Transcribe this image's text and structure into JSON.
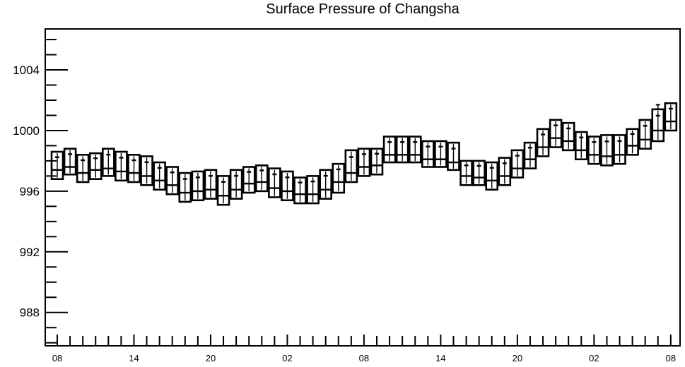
{
  "chart_data": {
    "type": "box",
    "title": "Surface Pressure of Changsha",
    "xlabel": "",
    "ylabel": "",
    "ylim": [
      985.8,
      1006.7
    ],
    "yticks": [
      988,
      992,
      996,
      1000,
      1004
    ],
    "x_tick_labels": [
      "08",
      "14",
      "20",
      "02",
      "08",
      "14",
      "20",
      "02",
      "08"
    ],
    "x_tick_indices": [
      0,
      6,
      12,
      18,
      24,
      30,
      36,
      42,
      48
    ],
    "boxes": [
      {
        "x": 0,
        "whisker_low": 996.8,
        "q1": 996.8,
        "median": 997.4,
        "q3": 998.6,
        "whisker_high": 998.6
      },
      {
        "x": 1,
        "whisker_low": 997.1,
        "q1": 997.1,
        "median": 997.6,
        "q3": 998.8,
        "whisker_high": 998.8
      },
      {
        "x": 2,
        "whisker_low": 996.6,
        "q1": 996.6,
        "median": 997.2,
        "q3": 998.4,
        "whisker_high": 998.4
      },
      {
        "x": 3,
        "whisker_low": 996.8,
        "q1": 996.8,
        "median": 997.4,
        "q3": 998.5,
        "whisker_high": 998.5
      },
      {
        "x": 4,
        "whisker_low": 997.0,
        "q1": 997.0,
        "median": 997.5,
        "q3": 998.8,
        "whisker_high": 998.8
      },
      {
        "x": 5,
        "whisker_low": 996.7,
        "q1": 996.7,
        "median": 997.3,
        "q3": 998.6,
        "whisker_high": 998.6
      },
      {
        "x": 6,
        "whisker_low": 996.6,
        "q1": 996.6,
        "median": 997.2,
        "q3": 998.4,
        "whisker_high": 998.4
      },
      {
        "x": 7,
        "whisker_low": 996.4,
        "q1": 996.4,
        "median": 997.0,
        "q3": 998.3,
        "whisker_high": 998.3
      },
      {
        "x": 8,
        "whisker_low": 996.1,
        "q1": 996.1,
        "median": 996.7,
        "q3": 997.9,
        "whisker_high": 997.9
      },
      {
        "x": 9,
        "whisker_low": 995.8,
        "q1": 995.8,
        "median": 996.4,
        "q3": 997.6,
        "whisker_high": 997.6
      },
      {
        "x": 10,
        "whisker_low": 995.3,
        "q1": 995.3,
        "median": 995.9,
        "q3": 997.2,
        "whisker_high": 997.2
      },
      {
        "x": 11,
        "whisker_low": 995.4,
        "q1": 995.4,
        "median": 996.0,
        "q3": 997.3,
        "whisker_high": 997.3
      },
      {
        "x": 12,
        "whisker_low": 995.5,
        "q1": 995.5,
        "median": 996.1,
        "q3": 997.4,
        "whisker_high": 997.4
      },
      {
        "x": 13,
        "whisker_low": 995.1,
        "q1": 995.1,
        "median": 995.7,
        "q3": 997.0,
        "whisker_high": 997.0
      },
      {
        "x": 14,
        "whisker_low": 995.5,
        "q1": 995.5,
        "median": 996.1,
        "q3": 997.4,
        "whisker_high": 997.4
      },
      {
        "x": 15,
        "whisker_low": 995.9,
        "q1": 995.9,
        "median": 996.5,
        "q3": 997.6,
        "whisker_high": 997.6
      },
      {
        "x": 16,
        "whisker_low": 996.0,
        "q1": 996.0,
        "median": 996.6,
        "q3": 997.7,
        "whisker_high": 997.7
      },
      {
        "x": 17,
        "whisker_low": 995.6,
        "q1": 995.6,
        "median": 996.2,
        "q3": 997.5,
        "whisker_high": 997.5
      },
      {
        "x": 18,
        "whisker_low": 995.4,
        "q1": 995.4,
        "median": 996.0,
        "q3": 997.3,
        "whisker_high": 997.3
      },
      {
        "x": 19,
        "whisker_low": 995.2,
        "q1": 995.2,
        "median": 995.8,
        "q3": 996.9,
        "whisker_high": 996.9
      },
      {
        "x": 20,
        "whisker_low": 995.2,
        "q1": 995.2,
        "median": 995.8,
        "q3": 997.0,
        "whisker_high": 997.0
      },
      {
        "x": 21,
        "whisker_low": 995.5,
        "q1": 995.5,
        "median": 996.1,
        "q3": 997.4,
        "whisker_high": 997.4
      },
      {
        "x": 22,
        "whisker_low": 995.9,
        "q1": 995.9,
        "median": 996.6,
        "q3": 997.8,
        "whisker_high": 997.8
      },
      {
        "x": 23,
        "whisker_low": 996.6,
        "q1": 996.6,
        "median": 997.2,
        "q3": 998.7,
        "whisker_high": 998.7
      },
      {
        "x": 24,
        "whisker_low": 997.0,
        "q1": 997.0,
        "median": 997.6,
        "q3": 998.8,
        "whisker_high": 998.8
      },
      {
        "x": 25,
        "whisker_low": 997.1,
        "q1": 997.1,
        "median": 997.7,
        "q3": 998.8,
        "whisker_high": 998.8
      },
      {
        "x": 26,
        "whisker_low": 997.9,
        "q1": 997.9,
        "median": 998.4,
        "q3": 999.6,
        "whisker_high": 999.6
      },
      {
        "x": 27,
        "whisker_low": 997.9,
        "q1": 997.9,
        "median": 998.4,
        "q3": 999.6,
        "whisker_high": 999.6
      },
      {
        "x": 28,
        "whisker_low": 997.9,
        "q1": 997.9,
        "median": 998.4,
        "q3": 999.6,
        "whisker_high": 999.6
      },
      {
        "x": 29,
        "whisker_low": 997.6,
        "q1": 997.6,
        "median": 998.1,
        "q3": 999.3,
        "whisker_high": 999.3
      },
      {
        "x": 30,
        "whisker_low": 997.6,
        "q1": 997.6,
        "median": 998.1,
        "q3": 999.3,
        "whisker_high": 999.3
      },
      {
        "x": 31,
        "whisker_low": 997.4,
        "q1": 997.4,
        "median": 997.9,
        "q3": 999.2,
        "whisker_high": 999.2
      },
      {
        "x": 32,
        "whisker_low": 996.4,
        "q1": 996.4,
        "median": 997.0,
        "q3": 998.0,
        "whisker_high": 998.0
      },
      {
        "x": 33,
        "whisker_low": 996.4,
        "q1": 996.4,
        "median": 996.9,
        "q3": 998.0,
        "whisker_high": 998.0
      },
      {
        "x": 34,
        "whisker_low": 996.1,
        "q1": 996.1,
        "median": 996.7,
        "q3": 997.9,
        "whisker_high": 997.9
      },
      {
        "x": 35,
        "whisker_low": 996.4,
        "q1": 996.4,
        "median": 997.0,
        "q3": 998.2,
        "whisker_high": 998.2
      },
      {
        "x": 36,
        "whisker_low": 996.9,
        "q1": 996.9,
        "median": 997.5,
        "q3": 998.7,
        "whisker_high": 998.7
      },
      {
        "x": 37,
        "whisker_low": 997.5,
        "q1": 997.5,
        "median": 998.1,
        "q3": 999.2,
        "whisker_high": 999.2
      },
      {
        "x": 38,
        "whisker_low": 998.3,
        "q1": 998.3,
        "median": 998.9,
        "q3": 1000.1,
        "whisker_high": 1000.1
      },
      {
        "x": 39,
        "whisker_low": 998.9,
        "q1": 998.9,
        "median": 999.5,
        "q3": 1000.7,
        "whisker_high": 1000.7
      },
      {
        "x": 40,
        "whisker_low": 998.7,
        "q1": 998.7,
        "median": 999.3,
        "q3": 1000.5,
        "whisker_high": 1000.5
      },
      {
        "x": 41,
        "whisker_low": 998.1,
        "q1": 998.1,
        "median": 998.7,
        "q3": 999.9,
        "whisker_high": 999.9
      },
      {
        "x": 42,
        "whisker_low": 997.8,
        "q1": 997.8,
        "median": 998.4,
        "q3": 999.6,
        "whisker_high": 999.6
      },
      {
        "x": 43,
        "whisker_low": 997.7,
        "q1": 997.7,
        "median": 998.3,
        "q3": 999.7,
        "whisker_high": 999.7
      },
      {
        "x": 44,
        "whisker_low": 997.8,
        "q1": 997.8,
        "median": 998.4,
        "q3": 999.7,
        "whisker_high": 999.7
      },
      {
        "x": 45,
        "whisker_low": 998.4,
        "q1": 998.4,
        "median": 999.0,
        "q3": 1000.1,
        "whisker_high": 1000.1
      },
      {
        "x": 46,
        "whisker_low": 998.8,
        "q1": 998.8,
        "median": 999.4,
        "q3": 1000.7,
        "whisker_high": 1000.7
      },
      {
        "x": 47,
        "whisker_low": 999.3,
        "q1": 999.3,
        "median": 1000.0,
        "q3": 1001.4,
        "whisker_high": 1001.7
      },
      {
        "x": 48,
        "whisker_low": 1000.0,
        "q1": 1000.0,
        "median": 1000.6,
        "q3": 1001.8,
        "whisker_high": 1001.8
      }
    ]
  }
}
